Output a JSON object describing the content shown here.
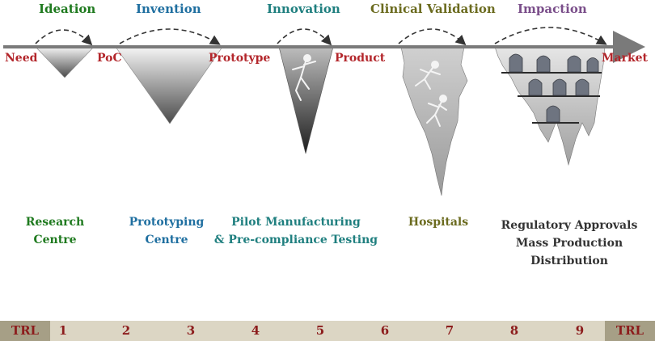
{
  "stages": [
    {
      "label": "Ideation",
      "color": "#1f7a1f"
    },
    {
      "label": "Invention",
      "color": "#1f6fa0"
    },
    {
      "label": "Innovation",
      "color": "#1f7f7f"
    },
    {
      "label": "Clinical Validation",
      "color": "#6b6b1f"
    },
    {
      "label": "Impaction",
      "color": "#7a4e8a"
    }
  ],
  "milestones": [
    "Need",
    "PoC",
    "Prototype",
    "Product",
    "Market"
  ],
  "centres": [
    {
      "line1": "Research",
      "line2": "Centre",
      "line3": "",
      "color": "#1f7a1f"
    },
    {
      "line1": "Prototyping",
      "line2": "Centre",
      "line3": "",
      "color": "#1f6fa0"
    },
    {
      "line1": "Pilot Manufacturing",
      "line2": "& Pre-compliance Testing",
      "line3": "",
      "color": "#1f7f7f"
    },
    {
      "line1": "Hospitals",
      "line2": "",
      "line3": "",
      "color": "#6b6b1f"
    },
    {
      "line1": "Regulatory Approvals",
      "line2": "Mass Production",
      "line3": "Distribution",
      "color": "#333333"
    }
  ],
  "trl": {
    "label": "TRL",
    "levels": [
      "1",
      "2",
      "3",
      "4",
      "5",
      "6",
      "7",
      "8",
      "9"
    ]
  }
}
